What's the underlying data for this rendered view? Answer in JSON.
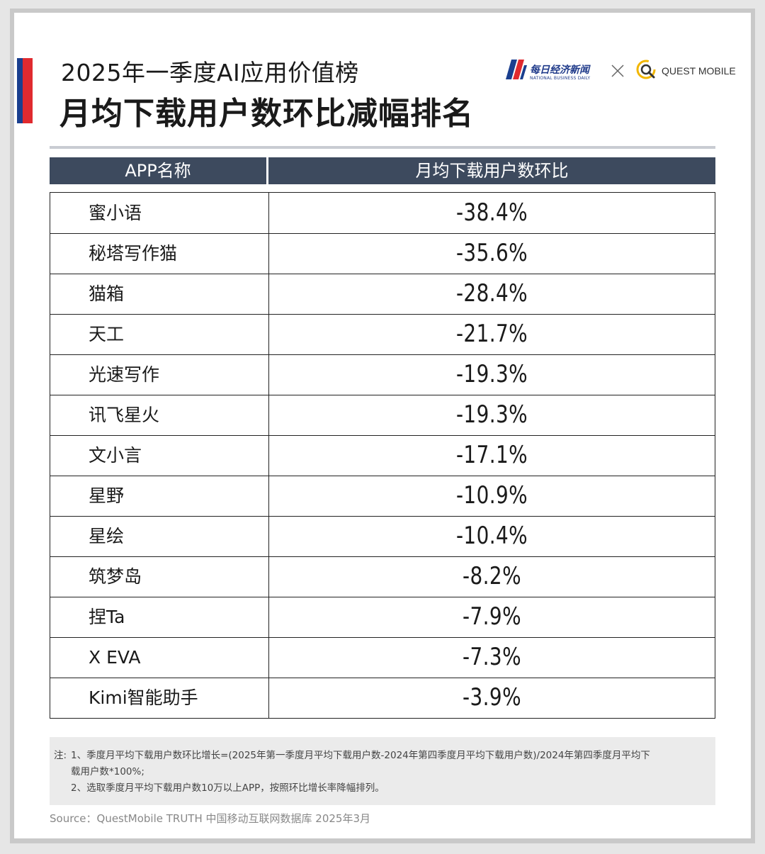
{
  "header": {
    "title_line1": "2025年一季度AI应用价值榜",
    "title_line2": "月均下载用户数环比减幅排名",
    "accent_colors": {
      "blue": "#1a3f8f",
      "red": "#e02a2f"
    }
  },
  "logos": {
    "nbd_cn": "每日经济新闻",
    "nbd_en": "NATIONAL BUSINESS DAILY",
    "separator_icon": "x-icon",
    "questmobile": "QUEST MOBILE"
  },
  "chart_data": {
    "type": "table",
    "columns": [
      "APP名称",
      "月均下载用户数环比"
    ],
    "rows": [
      {
        "app": "蜜小语",
        "change": "-38.4%"
      },
      {
        "app": "秘塔写作猫",
        "change": "-35.6%"
      },
      {
        "app": "猫箱",
        "change": "-28.4%"
      },
      {
        "app": "天工",
        "change": "-21.7%"
      },
      {
        "app": "光速写作",
        "change": "-19.3%"
      },
      {
        "app": "讯飞星火",
        "change": "-19.3%"
      },
      {
        "app": "文小言",
        "change": "-17.1%"
      },
      {
        "app": "星野",
        "change": "-10.9%"
      },
      {
        "app": "星绘",
        "change": "-10.4%"
      },
      {
        "app": "筑梦岛",
        "change": "-8.2%"
      },
      {
        "app": "捏Ta",
        "change": "-7.9%"
      },
      {
        "app": "X EVA",
        "change": "-7.3%"
      },
      {
        "app": "Kimi智能助手",
        "change": "-3.9%"
      }
    ],
    "header_color": "#3d4a5e"
  },
  "notes": {
    "prefix": "注:",
    "line1": "1、季度月平均下载用户数环比增长=(2025年第一季度月平均下载用户数-2024年第四季度月平均下载用户数)/2024年第四季度月平均下",
    "line2": "载用户数*100%;",
    "line3": "2、选取季度月平均下载用户数10万以上APP，按照环比增长率降幅排列。"
  },
  "source": "Source：QuestMobile TRUTH 中国移动互联网数据库 2025年3月"
}
